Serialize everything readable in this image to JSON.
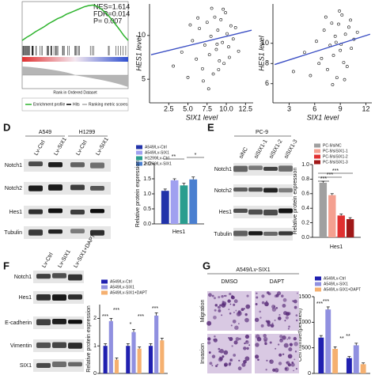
{
  "figure": {
    "panel_letters": [
      "D",
      "E",
      "F",
      "G"
    ],
    "gsea": {
      "nes": "NES=1.614",
      "fdr": "FDR=0.014",
      "p": "P= 0.007",
      "x_label": "Rank in Ordered Dataset",
      "legend": [
        "Enrichment profile",
        "Hits",
        "Ranking metric scores"
      ]
    },
    "d": {
      "groups": [
        "A549",
        "H1299"
      ],
      "lanes": [
        "Lv-Ctrl",
        "Lv-SIX1",
        "Lv-Ctrl",
        "Lv-SIX1"
      ],
      "proteins": [
        "Notch1",
        "Notch2",
        "Hes1",
        "Tubulin"
      ]
    },
    "e": {
      "group": "PC-9",
      "lanes": [
        "siNC",
        "siSIX1-1",
        "siSIX1-2",
        "siSIX1-3"
      ],
      "proteins": [
        "Notch1",
        "Notch2",
        "Hes1",
        "Tubulin"
      ]
    },
    "f": {
      "lanes": [
        "Lv-Ctrl",
        "Lv-SIX1",
        "Lv-SIX1+DAPT"
      ],
      "proteins": [
        "Notch1",
        "Hes1",
        "E-cadherin",
        "Vimentin",
        "SIX1"
      ]
    },
    "g": {
      "title": "A549/Lv-SIX1",
      "columns": [
        "DMSO",
        "DAPT"
      ],
      "rows": [
        "Migration",
        "Invasion"
      ]
    }
  },
  "chart_data": [
    {
      "type": "line",
      "color": "#2db32d",
      "ylim": [
        -0.05,
        0.6
      ],
      "values": [
        0,
        0.05,
        0.09,
        0.14,
        0.18,
        0.22,
        0.27,
        0.31,
        0.35,
        0.38,
        0.42,
        0.45,
        0.48,
        0.51,
        0.54,
        0.56,
        0.57,
        0.55,
        0.5,
        0.44,
        0.36,
        0.27,
        0.18,
        0.08,
        0
      ]
    },
    {
      "type": "scatter",
      "x_label": "SIX1 level",
      "y_label": "HES1 level",
      "color": "#111111",
      "trend_color": "#3b4fc4",
      "xlim": [
        0,
        13.5
      ],
      "ylim": [
        2.3,
        13.6
      ],
      "xticks": [
        2.5,
        {
          "value": 5,
          "label": "5.0"
        },
        7.5,
        {
          "value": 10,
          "label": "10.0"
        },
        12.5
      ],
      "yticks": [
        5,
        10
      ],
      "x": [
        3.1,
        4.2,
        5.0,
        5.6,
        6.1,
        6.5,
        6.9,
        7.2,
        7.5,
        7.8,
        8.0,
        8.3,
        8.5,
        8.7,
        8.9,
        9.1,
        9.3,
        9.5,
        9.7,
        9.9,
        10.1,
        10.3,
        10.6,
        10.9,
        11.2,
        11.6,
        6.3,
        7.0,
        8.1,
        9.0,
        9.6,
        10.4,
        5.3,
        7.7,
        8.8
      ],
      "y": [
        6.5,
        8.1,
        5.2,
        9.4,
        7.3,
        10.8,
        6.2,
        8.9,
        11.5,
        7.8,
        9.9,
        5.6,
        12.1,
        8.4,
        10.6,
        7.1,
        11.8,
        9.2,
        6.8,
        12.6,
        10.2,
        8.7,
        11.1,
        9.6,
        10.9,
        8.2,
        12.0,
        4.8,
        13.1,
        6.1,
        13.0,
        7.5,
        11.2,
        3.9,
        9.0
      ],
      "trend_x": [
        0.2,
        13.3
      ],
      "trend_y": [
        7.8,
        10.6
      ]
    },
    {
      "type": "scatter",
      "x_label": "SIX1 level",
      "y_label": "HES1 level",
      "color": "#111111",
      "trend_color": "#3b4fc4",
      "xlim": [
        1.1,
        12.7
      ],
      "ylim": [
        4.1,
        13.9
      ],
      "xticks": [
        3,
        6,
        9,
        12
      ],
      "yticks": [
        6,
        8,
        10
      ],
      "x": [
        3.5,
        4.8,
        5.5,
        6.2,
        6.8,
        7.1,
        7.5,
        7.8,
        8.0,
        8.2,
        8.4,
        8.6,
        8.8,
        9.0,
        9.2,
        9.4,
        9.6,
        9.8,
        10.0,
        10.3,
        10.6,
        11.0,
        7.3,
        8.1,
        8.9,
        9.5,
        10.2,
        6.5,
        9.1,
        8.5
      ],
      "y": [
        7.2,
        9.1,
        6.8,
        10.2,
        8.5,
        11.3,
        7.4,
        9.8,
        12.0,
        8.8,
        10.7,
        6.6,
        11.9,
        9.3,
        12.8,
        8.1,
        10.9,
        7.7,
        11.6,
        9.5,
        10.4,
        11.1,
        12.6,
        5.9,
        13.2,
        6.4,
        12.3,
        8.0,
        9.9,
        10.1
      ],
      "trend_x": [
        1.3,
        12.5
      ],
      "trend_y": [
        7.9,
        10.9
      ]
    },
    {
      "type": "bar",
      "y_label": "Relative protein expression",
      "x_label": "Hes1",
      "categories": [
        null
      ],
      "ylim": [
        0,
        2
      ],
      "yticks": [
        {
          "value": 0,
          "label": "0.0"
        },
        0.5,
        {
          "value": 1,
          "label": "1.0"
        },
        1.5,
        {
          "value": 2,
          "label": "2.0"
        }
      ],
      "series": [
        {
          "name": "A549/Lv-Ctrl",
          "color": "#2233aa",
          "values": [
            1.1
          ],
          "errors": [
            0.06
          ]
        },
        {
          "name": "A549/Lv-SIX1",
          "color": "#a0a0f0",
          "values": [
            1.45
          ],
          "errors": [
            0.05
          ]
        },
        {
          "name": "H1299/Lv-Ctrl",
          "color": "#2a9d8f",
          "values": [
            1.28
          ],
          "errors": [
            0.07
          ]
        },
        {
          "name": "H1299/Lv-SIX1",
          "color": "#4a7fd0",
          "values": [
            1.48
          ],
          "errors": [
            0.08
          ]
        }
      ],
      "annotations": [
        "**",
        "*"
      ]
    },
    {
      "type": "bar",
      "y_label": "Relative protein expression",
      "x_label": "Hes1",
      "categories": [
        null
      ],
      "ylim": [
        0,
        1
      ],
      "yticks": [
        {
          "value": 0,
          "label": "0.0"
        },
        0.2,
        0.4,
        0.6,
        0.8,
        {
          "value": 1,
          "label": "1.0"
        }
      ],
      "series": [
        {
          "name": "PC-9/siNC",
          "color": "#a0a0a0",
          "values": [
            0.75
          ],
          "errors": [
            0.02
          ]
        },
        {
          "name": "PC-9/siSIX1-1",
          "color": "#f4a090",
          "values": [
            0.58
          ],
          "errors": [
            0.02
          ]
        },
        {
          "name": "PC-9/siSIX1-2",
          "color": "#e03030",
          "values": [
            0.3
          ],
          "errors": [
            0.02
          ]
        },
        {
          "name": "PC-9/siSIX1-3",
          "color": "#a01818",
          "values": [
            0.25
          ],
          "errors": [
            0.02
          ]
        }
      ],
      "annotations": [
        "***",
        "***",
        "***"
      ]
    },
    {
      "type": "bar",
      "y_label": "Relative protein expression",
      "categories": [
        null,
        null,
        null
      ],
      "ylim": [
        0,
        2.5
      ],
      "yticks": [
        0,
        1,
        2
      ],
      "series": [
        {
          "name": "A549/Lv-Ctrl",
          "color": "#2020b0",
          "values": [
            1.0,
            1.0,
            1.0
          ],
          "errors": [
            0.08,
            0.08,
            0.08
          ]
        },
        {
          "name": "A549/Lv-SIX1",
          "color": "#9090e0",
          "values": [
            1.9,
            1.5,
            2.1
          ],
          "errors": [
            0.1,
            0.1,
            0.1
          ]
        },
        {
          "name": "A549/Lv-SIX1+DAPT",
          "color": "#f5b070",
          "values": [
            0.5,
            0.9,
            1.2
          ],
          "errors": [
            0.06,
            0.06,
            0.08
          ]
        }
      ],
      "annotations": [
        "***",
        "***",
        "*",
        "***",
        "***"
      ]
    },
    {
      "type": "bar",
      "y_label": "Cell number(per filed)",
      "categories": [
        null,
        null
      ],
      "ylim": [
        0,
        1500
      ],
      "yticks": [
        0,
        500,
        1000,
        1500
      ],
      "series": [
        {
          "name": "A549/Lv-Ctrl",
          "color": "#2020b0",
          "values": [
            700,
            300
          ],
          "errors": [
            40,
            30
          ]
        },
        {
          "name": "A549/Lv-SIX1",
          "color": "#9090e0",
          "values": [
            1250,
            550
          ],
          "errors": [
            50,
            40
          ]
        },
        {
          "name": "A549/Lv-SIX1+DAPT",
          "color": "#f5b070",
          "values": [
            480,
            180
          ],
          "errors": [
            40,
            25
          ]
        }
      ],
      "annotations": [
        "***",
        "***",
        "**",
        "**"
      ]
    }
  ]
}
